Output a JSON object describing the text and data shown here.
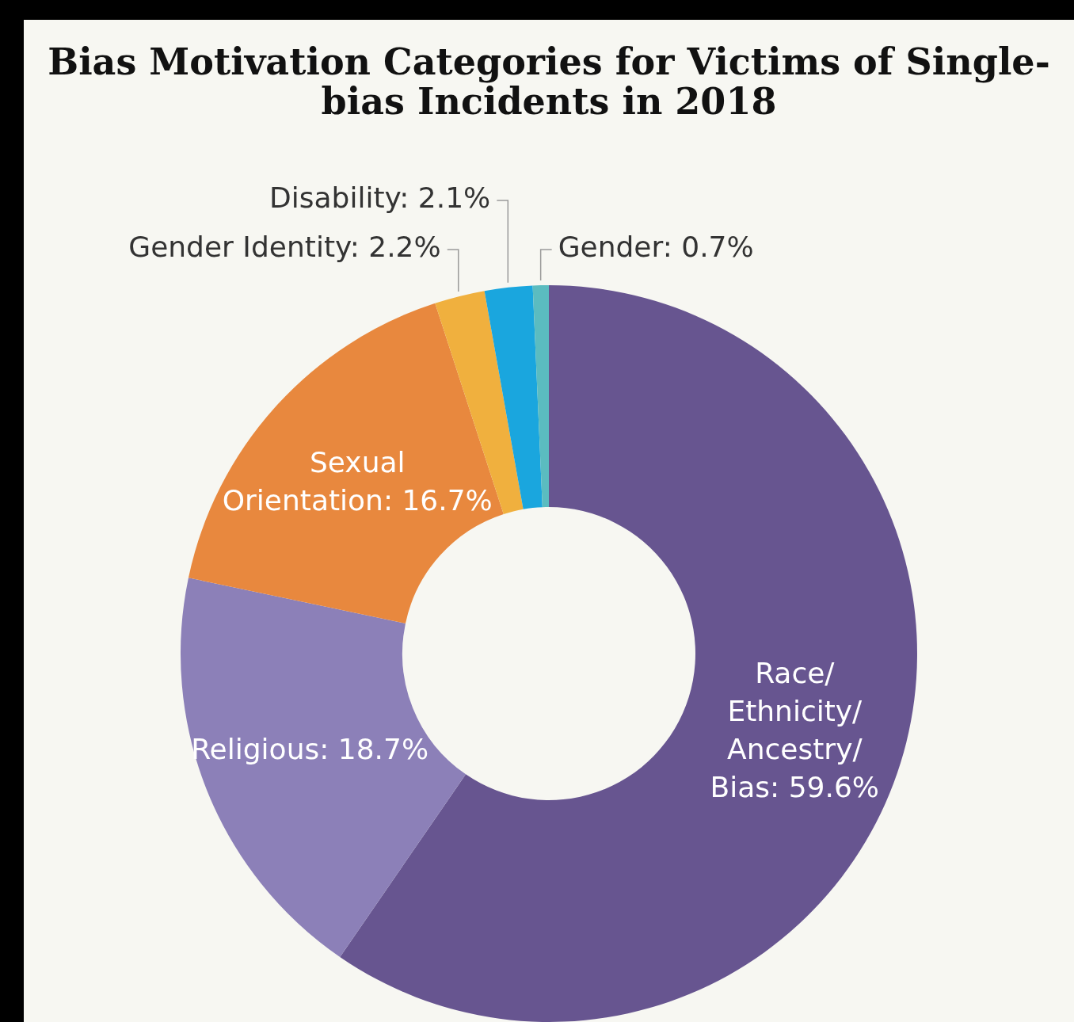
{
  "chart_data": {
    "type": "donut",
    "title": "Bias Motivation Categories for Victims of Single-bias Incidents in 2018",
    "categories": [
      "Race/Ethnicity/Ancestry/Bias",
      "Religious",
      "Sexual Orientation",
      "Gender Identity",
      "Disability",
      "Gender"
    ],
    "values": [
      59.6,
      18.7,
      16.7,
      2.2,
      2.1,
      0.7
    ],
    "colors": [
      "#675590",
      "#8c80b8",
      "#e8883e",
      "#f0b03e",
      "#1aa6de",
      "#5bbcc0"
    ],
    "value_labels": [
      "59.6%",
      "18.7%",
      "16.7%",
      "2.2%",
      "2.1%",
      "0.7%"
    ]
  }
}
